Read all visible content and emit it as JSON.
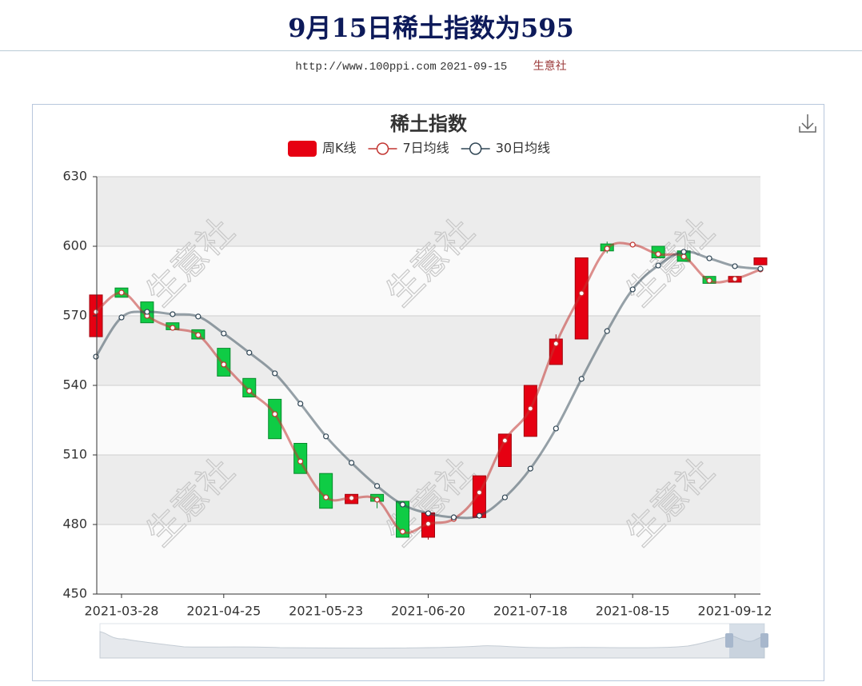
{
  "header": {
    "title": "9月15日稀土指数为595",
    "url": "http://www.100ppi.com",
    "date": "2021-09-15",
    "source": "生意社"
  },
  "chart_data": {
    "type": "candlestick",
    "title": "稀土指数",
    "watermark": "生意社",
    "categories": [
      null,
      "2021-03-28",
      null,
      null,
      null,
      "2021-04-25",
      null,
      null,
      null,
      "2021-05-23",
      null,
      null,
      null,
      "2021-06-20",
      null,
      null,
      null,
      "2021-07-18",
      null,
      null,
      null,
      "2021-08-15",
      null,
      null,
      null,
      "2021-09-12",
      null
    ],
    "ylim": [
      450,
      630
    ],
    "yticks": [
      450,
      480,
      510,
      540,
      570,
      600,
      630
    ],
    "grid": true,
    "series": [
      {
        "name": "周K线",
        "type": "candlestick",
        "up_color": "#e60012",
        "down_color": "#0fcc45",
        "values": [
          [
            561,
            579,
            561,
            579
          ],
          [
            582,
            578,
            578,
            582
          ],
          [
            576,
            567,
            567,
            576
          ],
          [
            567,
            564,
            564,
            567
          ],
          [
            564,
            560,
            560,
            564
          ],
          [
            556,
            544,
            544,
            556
          ],
          [
            543,
            535,
            535,
            543
          ],
          [
            534,
            517,
            517,
            534
          ],
          [
            515,
            502,
            502,
            515
          ],
          [
            502,
            487,
            487,
            502
          ],
          [
            489,
            493,
            489,
            493
          ],
          [
            493,
            490,
            487,
            493
          ],
          [
            490,
            474.5,
            474.5,
            490
          ],
          [
            474.5,
            485,
            473.5,
            485
          ],
          null,
          [
            483,
            501,
            483,
            501
          ],
          [
            505,
            519,
            505,
            519
          ],
          [
            518,
            540,
            518,
            540
          ],
          [
            549,
            560,
            549,
            562
          ],
          [
            560,
            595,
            560,
            595
          ],
          [
            601,
            598,
            597,
            602
          ],
          null,
          [
            600,
            595,
            595,
            600
          ],
          [
            598,
            593.5,
            593.5,
            598
          ],
          [
            587,
            584,
            584,
            587
          ],
          [
            584.5,
            587,
            584.5,
            587
          ],
          [
            592,
            595,
            592,
            595
          ]
        ]
      },
      {
        "name": "7日均线",
        "type": "line",
        "color": "#c23531",
        "values": [
          571.7,
          580,
          570,
          564.8,
          561.7,
          549,
          537.6,
          527.6,
          507.2,
          491.7,
          491.4,
          490.7,
          476.9,
          480.3,
          482.4,
          493.8,
          516.2,
          530,
          558,
          579.7,
          599,
          600.7,
          596.6,
          595.5,
          585.2,
          585.9,
          590
        ]
      },
      {
        "name": "30日均线",
        "type": "line",
        "color": "#2f4554",
        "values": [
          552.4,
          569.3,
          571.7,
          570.7,
          569.7,
          562.4,
          554.1,
          545.2,
          532.1,
          518,
          506.6,
          496.6,
          488.6,
          484.8,
          483.1,
          483.8,
          491.7,
          504.1,
          521.4,
          542.8,
          563.4,
          581.4,
          591.7,
          597.6,
          594.8,
          591.4,
          590.3
        ]
      }
    ]
  }
}
